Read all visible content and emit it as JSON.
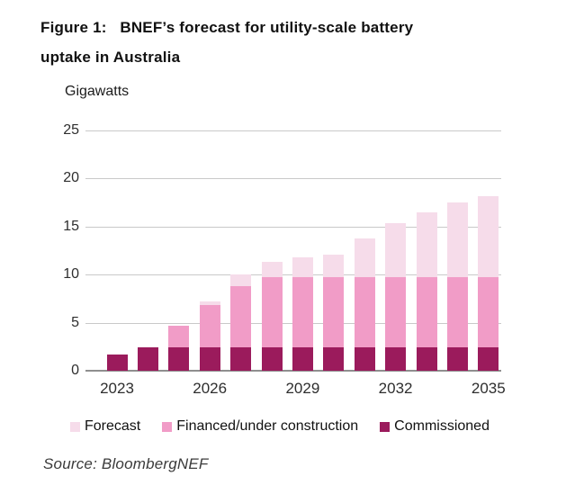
{
  "figure": {
    "title": "Figure 1:   BNEF’s forecast for utility-scale battery\nuptake in Australia",
    "unit_label": "Gigawatts",
    "source": "Source: BloombergNEF"
  },
  "colors": {
    "forecast": "#f6dcea",
    "financed": "#f19cc7",
    "commissioned": "#9b1b5c",
    "gridline": "#c9c9c9",
    "axis": "#8f8f8f"
  },
  "chart_data": {
    "type": "bar",
    "stacked": true,
    "title": "Figure 1: BNEF's forecast for utility-scale battery uptake in Australia",
    "xlabel": "",
    "ylabel": "Gigawatts",
    "ylim": [
      0,
      25
    ],
    "yticks": [
      0,
      5,
      10,
      15,
      20,
      25
    ],
    "grid": true,
    "legend_position": "bottom",
    "categories": [
      "2023",
      "2024",
      "2025",
      "2026",
      "2027",
      "2028",
      "2029",
      "2030",
      "2031",
      "2032",
      "2033",
      "2034",
      "2035"
    ],
    "xtick_labels": [
      "2023",
      "2026",
      "2029",
      "2032",
      "2035"
    ],
    "series": [
      {
        "name": "Commissioned",
        "key": "commissioned",
        "values": [
          1.7,
          2.4,
          2.4,
          2.4,
          2.4,
          2.4,
          2.4,
          2.4,
          2.4,
          2.4,
          2.4,
          2.4,
          2.4
        ]
      },
      {
        "name": "Financed/under construction",
        "key": "financed",
        "values": [
          0,
          0,
          2.3,
          4.4,
          6.4,
          7.3,
          7.3,
          7.3,
          7.3,
          7.3,
          7.3,
          7.3,
          7.3
        ]
      },
      {
        "name": "Forecast",
        "key": "forecast",
        "values": [
          0,
          0,
          0,
          0.4,
          1.2,
          1.6,
          2.1,
          2.4,
          4.1,
          5.7,
          6.8,
          7.8,
          8.5
        ]
      }
    ],
    "totals": [
      1.7,
      2.4,
      4.7,
      7.2,
      10.0,
      11.3,
      11.8,
      12.1,
      13.8,
      15.4,
      16.5,
      17.5,
      18.2
    ],
    "legend": [
      {
        "label": "Forecast",
        "key": "forecast"
      },
      {
        "label": "Financed/under construction",
        "key": "financed"
      },
      {
        "label": "Commissioned",
        "key": "commissioned"
      }
    ]
  }
}
